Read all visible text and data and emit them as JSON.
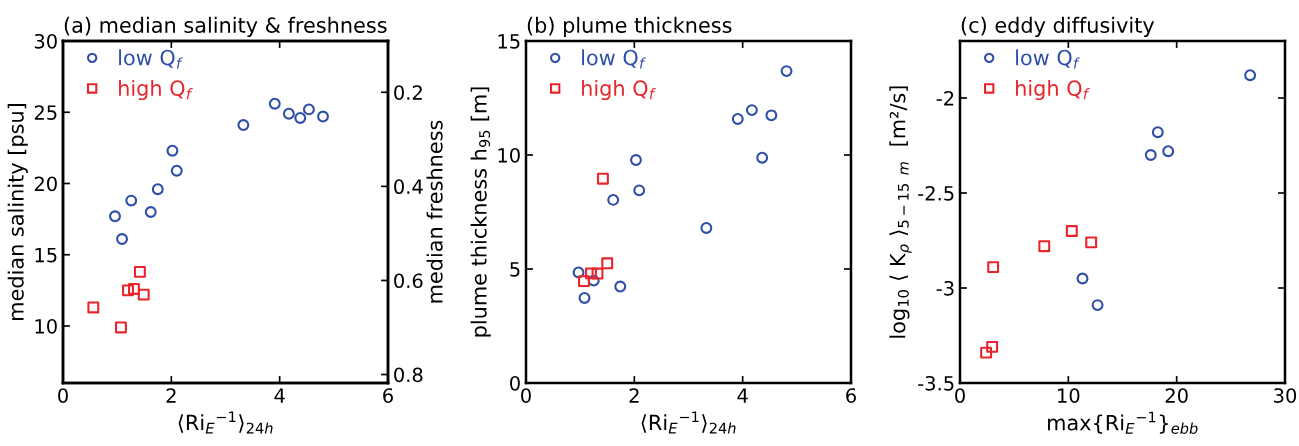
{
  "chart_data": [
    {
      "type": "scatter",
      "title": "(a) median salinity & freshness",
      "xlabel": "⟨Ri$_{E}$$^{−1}$⟩$_{24h}$",
      "ylabel": "median salinity [psu]",
      "y2label": "median freshness",
      "xlim": [
        0,
        6
      ],
      "xticks": [
        0,
        2,
        4,
        6
      ],
      "ylim": [
        6,
        30
      ],
      "yticks": [
        10,
        15,
        20,
        25,
        30
      ],
      "y2lim": [
        0.818,
        0.091
      ],
      "y2ticks": [
        0.2,
        0.4,
        0.6,
        0.8
      ],
      "legend": "top left",
      "grid": false,
      "series": [
        {
          "name": "low Q$_{f}$",
          "color": "#2e4fa8",
          "marker": "circle",
          "x": [
            0.96,
            1.09,
            1.26,
            1.62,
            1.75,
            2.02,
            2.1,
            3.33,
            3.91,
            4.17,
            4.38,
            4.54,
            4.8
          ],
          "values": [
            17.7,
            16.1,
            18.8,
            18.0,
            19.6,
            22.3,
            20.9,
            24.1,
            25.6,
            24.9,
            24.6,
            25.2,
            24.7
          ]
        },
        {
          "name": "high Q$_{f}$",
          "color": "#e8252b",
          "marker": "square",
          "x": [
            0.56,
            1.07,
            1.2,
            1.31,
            1.42,
            1.49
          ],
          "values": [
            11.3,
            9.9,
            12.5,
            12.6,
            13.8,
            12.2
          ]
        }
      ]
    },
    {
      "type": "scatter",
      "title": "(b) plume thickness",
      "xlabel": "⟨Ri$_{E}$$^{−1}$⟩$_{24h}$",
      "ylabel": "plume thickness h$_{95}$ [m]",
      "xlim": [
        0,
        6
      ],
      "xticks": [
        0,
        2,
        4,
        6
      ],
      "ylim": [
        0,
        15
      ],
      "yticks": [
        0,
        5,
        10,
        15
      ],
      "legend": "top left",
      "grid": false,
      "series": [
        {
          "name": "low Q$_{f}$",
          "color": "#2e4fa8",
          "marker": "circle",
          "x": [
            0.97,
            1.08,
            1.25,
            1.61,
            1.74,
            2.03,
            2.09,
            3.33,
            3.91,
            4.17,
            4.36,
            4.53,
            4.81
          ],
          "values": [
            4.85,
            3.73,
            4.49,
            8.03,
            4.23,
            9.78,
            8.45,
            6.8,
            11.58,
            11.97,
            9.88,
            11.74,
            13.68
          ]
        },
        {
          "name": "high Q$_{f}$",
          "color": "#e8252b",
          "marker": "square",
          "x": [
            1.07,
            1.2,
            1.32,
            1.42,
            1.5
          ],
          "values": [
            4.47,
            4.81,
            4.8,
            8.96,
            5.25
          ]
        }
      ]
    },
    {
      "type": "scatter",
      "title": "(c) eddy diffusivity",
      "xlabel": "max{Ri$_{E}$$^{−1}$}$_{ebb}$",
      "ylabel": "log$_{10}$ ⟨ K$_{ρ}$ ⟩$_{5−15}$ $_{m}$  [m²/s]",
      "xlim": [
        0,
        30
      ],
      "xticks": [
        0,
        10,
        20,
        30
      ],
      "ylim": [
        -3.5,
        -1.7
      ],
      "yticks": [
        -3.5,
        -3,
        -2.5,
        -2
      ],
      "legend": "top left",
      "grid": false,
      "series": [
        {
          "name": "low Q$_{f}$",
          "color": "#2e4fa8",
          "marker": "circle",
          "x": [
            26.78,
            18.26,
            17.61,
            19.22,
            11.31,
            12.7
          ],
          "values": [
            -1.88,
            -2.18,
            -2.3,
            -2.28,
            -2.95,
            -3.09
          ]
        },
        {
          "name": "high Q$_{f}$",
          "color": "#e8252b",
          "marker": "square",
          "x": [
            2.41,
            2.97,
            3.06,
            7.78,
            10.32,
            12.11
          ],
          "values": [
            -3.34,
            -3.31,
            -2.89,
            -2.78,
            -2.7,
            -2.76
          ]
        }
      ]
    }
  ]
}
